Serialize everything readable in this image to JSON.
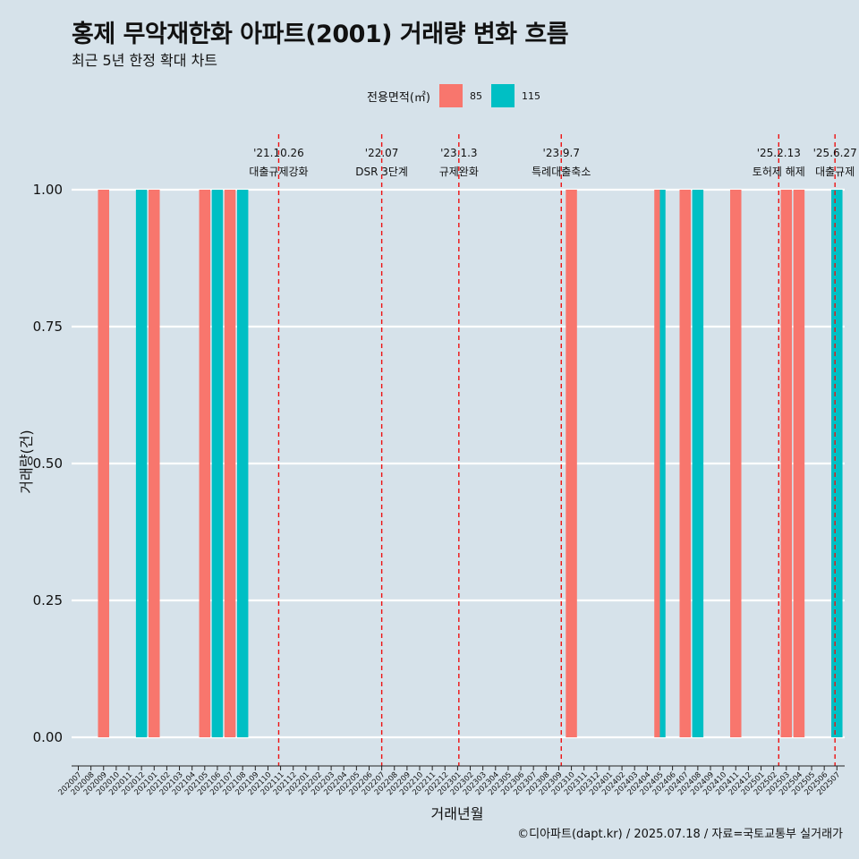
{
  "title": "홍제 무악재한화 아파트(2001) 거래량 변화 흐름",
  "subtitle": "최근 5년 한정 확대 차트",
  "caption": "©디아파트(dapt.kr) / 2025.07.18 / 자료=국토교통부 실거래가",
  "colors": {
    "s85": "#f8766d",
    "s115": "#00bfc4",
    "event_line": "#ee1111",
    "grid": "#ffffff"
  },
  "chart_data": {
    "type": "bar",
    "xlabel": "거래년월",
    "ylabel": "거래량(건)",
    "ylim": [
      0,
      1
    ],
    "yticks": [
      "0.00",
      "0.25",
      "0.50",
      "0.75",
      "1.00"
    ],
    "legend": {
      "title": "전용면적(㎡)",
      "position": "top",
      "entries": [
        "85",
        "115"
      ]
    },
    "categories": [
      "202007",
      "202008",
      "202009",
      "202010",
      "202011",
      "202012",
      "202101",
      "202102",
      "202103",
      "202104",
      "202105",
      "202106",
      "202107",
      "202108",
      "202109",
      "202110",
      "202111",
      "202112",
      "202201",
      "202202",
      "202203",
      "202204",
      "202205",
      "202206",
      "202207",
      "202208",
      "202209",
      "202210",
      "202211",
      "202212",
      "202301",
      "202302",
      "202303",
      "202304",
      "202305",
      "202306",
      "202307",
      "202308",
      "202309",
      "202310",
      "202311",
      "202312",
      "202401",
      "202402",
      "202403",
      "202404",
      "202405",
      "202406",
      "202407",
      "202408",
      "202409",
      "202410",
      "202411",
      "202412",
      "202501",
      "202502",
      "202503",
      "202504",
      "202505",
      "202506",
      "202507"
    ],
    "series": [
      {
        "name": "85",
        "values": [
          0,
          0,
          1,
          0,
          0,
          0,
          1,
          0,
          0,
          0,
          1,
          0,
          1,
          0,
          0,
          0,
          0,
          0,
          0,
          0,
          0,
          0,
          0,
          0,
          0,
          0,
          0,
          0,
          0,
          0,
          0,
          0,
          0,
          0,
          0,
          0,
          0,
          0,
          0,
          1,
          0,
          0,
          0,
          0,
          0,
          0,
          1,
          0,
          1,
          0,
          0,
          0,
          1,
          0,
          0,
          0,
          1,
          1,
          0,
          0,
          0
        ]
      },
      {
        "name": "115",
        "values": [
          0,
          0,
          0,
          0,
          0,
          1,
          0,
          0,
          0,
          0,
          0,
          1,
          0,
          1,
          0,
          0,
          0,
          0,
          0,
          0,
          0,
          0,
          0,
          0,
          0,
          0,
          0,
          0,
          0,
          0,
          0,
          0,
          0,
          0,
          0,
          0,
          0,
          0,
          0,
          0,
          0,
          0,
          0,
          0,
          0,
          0,
          1,
          0,
          0,
          1,
          0,
          0,
          0,
          0,
          0,
          0,
          0,
          0,
          0,
          0,
          1
        ]
      }
    ],
    "events": [
      {
        "date": "'21.10.26",
        "label": "대출규제강화",
        "month": "202110",
        "offset": 0.85
      },
      {
        "date": "'22.07",
        "label": "DSR 3단계",
        "month": "202207",
        "offset": 0.0
      },
      {
        "date": "'23.1.3",
        "label": "규제완화",
        "month": "202301",
        "offset": 0.1
      },
      {
        "date": "'23.9.7",
        "label": "특례대출축소",
        "month": "202309",
        "offset": 0.2
      },
      {
        "date": "'25.2.13",
        "label": "토허제 해제",
        "month": "202502",
        "offset": 0.4
      },
      {
        "date": "'25.6.27",
        "label": "대출규제",
        "month": "202506",
        "offset": 0.85
      }
    ]
  }
}
